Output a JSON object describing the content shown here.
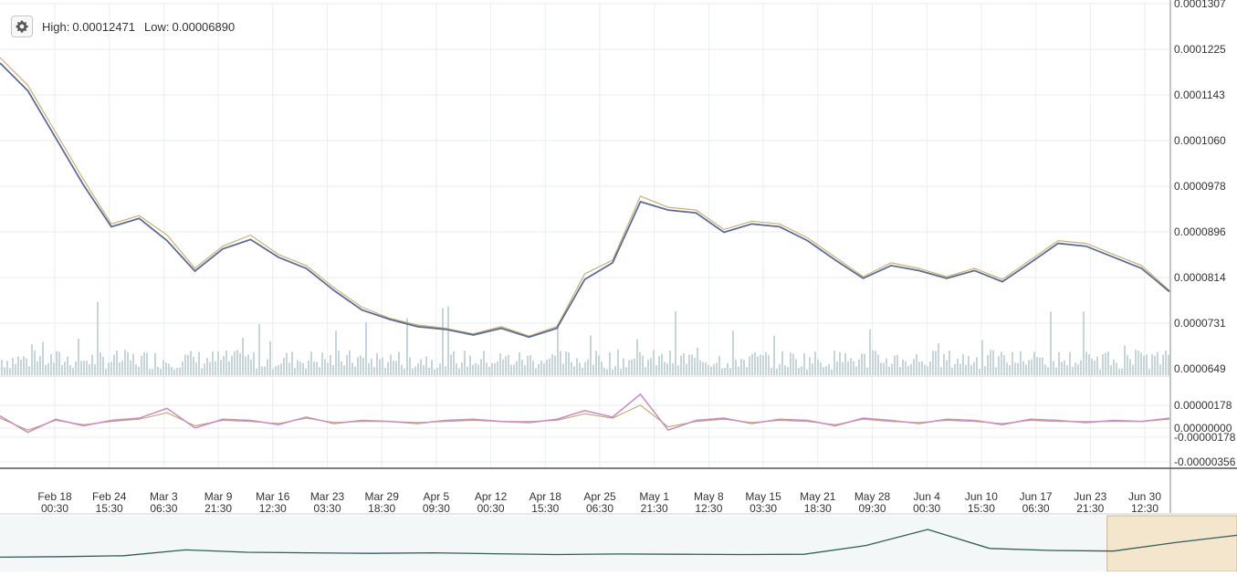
{
  "header": {
    "settings_icon": "gear-icon",
    "high_label": "High:",
    "high_value": "0.00012471",
    "low_label": "Low:",
    "low_value": "0.00006890"
  },
  "colors": {
    "price_line": "#c9b27a",
    "moving_average": "#5f6c92",
    "volume": "#c7d5d8",
    "oscillator_a": "#c98fc3",
    "oscillator_b": "#b8a06a",
    "navigator_line": "#2f5d58",
    "navigator_selection": "#f4e6cc",
    "grid": "#e9eeee"
  },
  "chart_data": [
    {
      "type": "line",
      "panel": "price",
      "yticks": [
        "0.0001307",
        "0.0001225",
        "0.0001143",
        "0.0001060",
        "0.0000978",
        "0.0000896",
        "0.0000814",
        "0.0000731",
        "0.0000649"
      ],
      "ylim": [
        6.49e-05,
        0.0001307
      ],
      "xticks": [
        {
          "date": "Feb 18",
          "time": "00:30"
        },
        {
          "date": "Feb 24",
          "time": "15:30"
        },
        {
          "date": "Mar 3",
          "time": "06:30"
        },
        {
          "date": "Mar 9",
          "time": "21:30"
        },
        {
          "date": "Mar 16",
          "time": "12:30"
        },
        {
          "date": "Mar 23",
          "time": "03:30"
        },
        {
          "date": "Mar 29",
          "time": "18:30"
        },
        {
          "date": "Apr 5",
          "time": "09:30"
        },
        {
          "date": "Apr 12",
          "time": "00:30"
        },
        {
          "date": "Apr 18",
          "time": "15:30"
        },
        {
          "date": "Apr 25",
          "time": "06:30"
        },
        {
          "date": "May 1",
          "time": "21:30"
        },
        {
          "date": "May 8",
          "time": "12:30"
        },
        {
          "date": "May 15",
          "time": "03:30"
        },
        {
          "date": "May 21",
          "time": "18:30"
        },
        {
          "date": "May 28",
          "time": "09:30"
        },
        {
          "date": "Jun 4",
          "time": "00:30"
        },
        {
          "date": "Jun 10",
          "time": "15:30"
        },
        {
          "date": "Jun 17",
          "time": "06:30"
        },
        {
          "date": "Jun 23",
          "time": "21:30"
        },
        {
          "date": "Jun 30",
          "time": "12:30"
        }
      ],
      "x": [
        0,
        0.5,
        1,
        1.5,
        2,
        2.5,
        3,
        3.5,
        4,
        4.5,
        5,
        5.5,
        6,
        6.5,
        7,
        7.5,
        8,
        8.5,
        9,
        9.5,
        10,
        10.5,
        11,
        11.5,
        12,
        12.5,
        13,
        13.5,
        14,
        14.5,
        15,
        15.5,
        16,
        16.5,
        17,
        17.5,
        18,
        18.5,
        19,
        19.5,
        20,
        20.5,
        21
      ],
      "series": [
        {
          "values": [
            0.000121,
            0.000116,
            0.0001075,
            9.9e-05,
            9.1e-05,
            9.25e-05,
            8.9e-05,
            8.3e-05,
            8.7e-05,
            8.9e-05,
            8.55e-05,
            8.35e-05,
            7.95e-05,
            7.6e-05,
            7.4e-05,
            7.28e-05,
            7.22e-05,
            7.12e-05,
            7.25e-05,
            7.08e-05,
            7.25e-05,
            8.2e-05,
            8.45e-05,
            9.6e-05,
            9.4e-05,
            9.35e-05,
            9e-05,
            9.15e-05,
            9.1e-05,
            8.85e-05,
            8.5e-05,
            8.15e-05,
            8.4e-05,
            8.3e-05,
            8.15e-05,
            8.3e-05,
            8.1e-05,
            8.45e-05,
            8.8e-05,
            8.75e-05,
            8.55e-05,
            8.35e-05,
            7.9e-05
          ]
        },
        {
          "values": [
            0.00012,
            0.000115,
            0.0001065,
            9.8e-05,
            9.05e-05,
            9.2e-05,
            8.8e-05,
            8.25e-05,
            8.65e-05,
            8.82e-05,
            8.5e-05,
            8.3e-05,
            7.9e-05,
            7.55e-05,
            7.38e-05,
            7.25e-05,
            7.2e-05,
            7.1e-05,
            7.22e-05,
            7.06e-05,
            7.22e-05,
            8.1e-05,
            8.4e-05,
            9.5e-05,
            9.35e-05,
            9.3e-05,
            8.95e-05,
            9.1e-05,
            9.05e-05,
            8.8e-05,
            8.45e-05,
            8.12e-05,
            8.35e-05,
            8.26e-05,
            8.12e-05,
            8.26e-05,
            8.06e-05,
            8.4e-05,
            8.75e-05,
            8.7e-05,
            8.5e-05,
            8.3e-05,
            7.88e-05
          ]
        }
      ]
    },
    {
      "type": "line",
      "panel": "oscillator",
      "yticks": [
        "0.00000178",
        "0.00000000",
        "-0.00000178",
        "-0.00000356"
      ],
      "ylim": [
        -3.56e-06,
        3e-06
      ],
      "x": [
        0,
        0.5,
        1,
        1.5,
        2,
        2.5,
        3,
        3.5,
        4,
        4.5,
        5,
        5.5,
        6,
        6.5,
        7,
        7.5,
        8,
        8.5,
        9,
        9.5,
        10,
        10.5,
        11,
        11.5,
        12,
        12.5,
        13,
        13.5,
        14,
        14.5,
        15,
        15.5,
        16,
        16.5,
        17,
        17.5,
        18,
        18.5,
        19,
        19.5,
        20,
        20.5,
        21
      ],
      "series": [
        {
          "values": [
            5e-07,
            -1e-06,
            2e-07,
            -4e-07,
            1e-07,
            3e-07,
            1.2e-06,
            -6e-07,
            2e-07,
            1e-07,
            -3e-07,
            4e-07,
            -2e-07,
            1e-07,
            0.0,
            -2e-07,
            1e-07,
            2e-07,
            0.0,
            -1e-07,
            2e-07,
            1e-06,
            4e-07,
            2.5e-06,
            -8e-07,
            1e-07,
            3e-07,
            -2e-07,
            2e-07,
            1e-07,
            -4e-07,
            3e-07,
            1e-07,
            -2e-07,
            2e-07,
            1e-07,
            -3e-07,
            2e-07,
            1e-07,
            -1e-07,
            1e-07,
            0.0,
            3e-07
          ]
        },
        {
          "values": [
            3e-07,
            -8e-07,
            1e-07,
            -3e-07,
            0.0,
            2e-07,
            8e-07,
            -4e-07,
            1e-07,
            0.0,
            -2e-07,
            3e-07,
            -1e-07,
            0.0,
            0.0,
            -1e-07,
            0.0,
            1e-07,
            0.0,
            0.0,
            1e-07,
            7e-07,
            3e-07,
            1.5e-06,
            -5e-07,
            0.0,
            2e-07,
            -1e-07,
            1e-07,
            0.0,
            -3e-07,
            2e-07,
            0.0,
            -1e-07,
            1e-07,
            0.0,
            -2e-07,
            1e-07,
            0.0,
            0.0,
            0.0,
            0.0,
            2e-07
          ]
        }
      ]
    },
    {
      "type": "line",
      "panel": "navigator",
      "x": [
        0,
        1,
        2,
        3,
        4,
        5,
        6,
        7,
        8,
        9,
        10,
        11,
        12,
        13,
        14,
        15,
        16,
        17,
        18,
        19,
        20
      ],
      "series": [
        {
          "values": [
            0.05,
            0.07,
            0.1,
            0.3,
            0.22,
            0.2,
            0.18,
            0.2,
            0.17,
            0.14,
            0.16,
            0.15,
            0.14,
            0.15,
            0.45,
            1.0,
            0.35,
            0.28,
            0.26,
            0.55,
            0.8
          ]
        }
      ],
      "selection_range": [
        0.895,
        1.0
      ]
    }
  ]
}
